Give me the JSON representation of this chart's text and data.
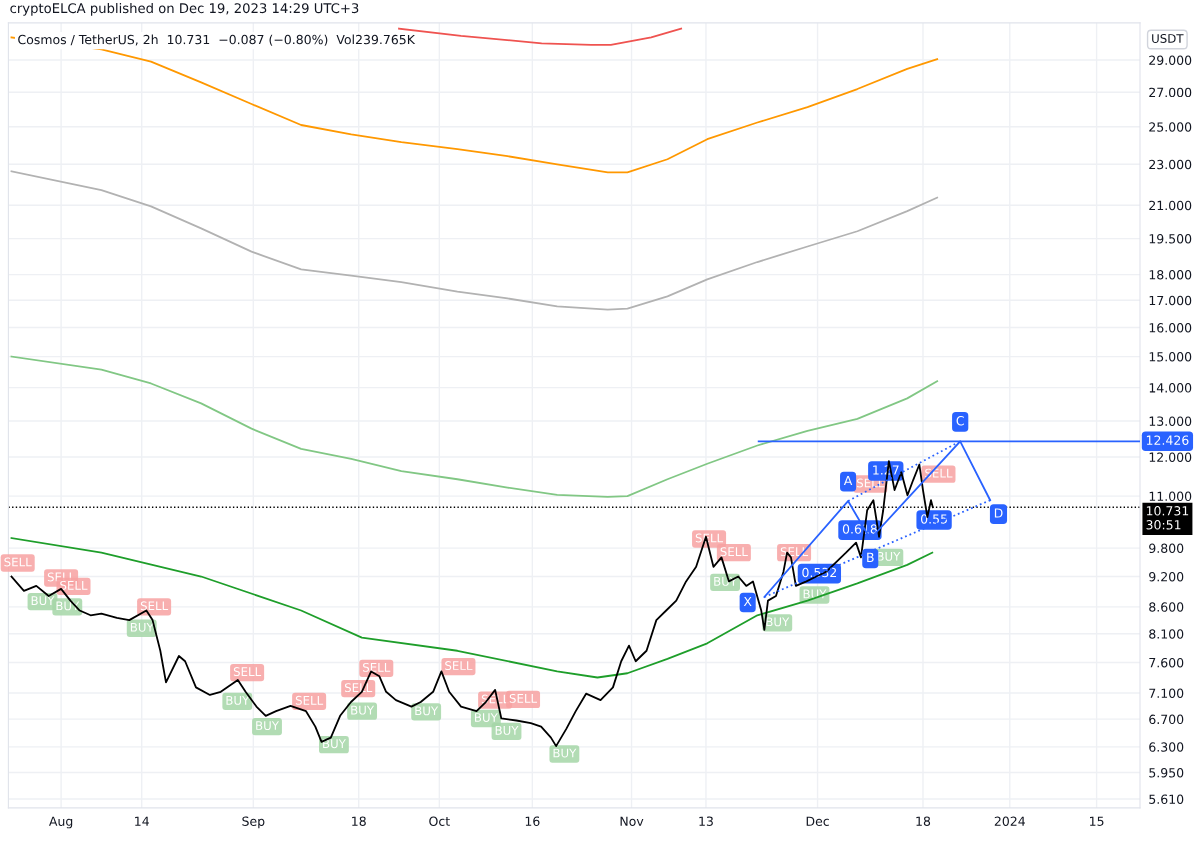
{
  "chart_data": {
    "type": "line",
    "title": "cryptoELCA published on Dec 19, 2023 14:29 UTC+3",
    "subtitle": "Cosmos / TetherUS, 2h  10.731  −0.087 (−0.80%)  Vol239.765K",
    "log": "y",
    "grid": true,
    "legend": false,
    "xlim": [
      "2023-07-23T12:00",
      "2024-01-22"
    ],
    "xticks": [
      {
        "value": "2023-08-01",
        "label": "Aug"
      },
      {
        "value": "2023-08-14",
        "label": "14"
      },
      {
        "value": "2023-09-01",
        "label": "Sep"
      },
      {
        "value": "2023-09-18",
        "label": "18"
      },
      {
        "value": "2023-10-01",
        "label": "Oct"
      },
      {
        "value": "2023-10-16",
        "label": "16"
      },
      {
        "value": "2023-11-01",
        "label": "Nov"
      },
      {
        "value": "2023-11-13",
        "label": "13"
      },
      {
        "value": "2023-12-01",
        "label": "Dec"
      },
      {
        "value": "2023-12-18",
        "label": "18"
      },
      {
        "value": "2024-01-01",
        "label": "2024"
      },
      {
        "value": "2024-01-15",
        "label": "15"
      }
    ],
    "ylim": [
      5.5,
      31.5
    ],
    "yticks": [
      {
        "value": 5.61,
        "label": "5.610"
      },
      {
        "value": 5.95,
        "label": "5.950"
      },
      {
        "value": 6.3,
        "label": "6.300"
      },
      {
        "value": 6.7,
        "label": "6.700"
      },
      {
        "value": 7.1,
        "label": "7.100"
      },
      {
        "value": 7.6,
        "label": "7.600"
      },
      {
        "value": 8.1,
        "label": "8.100"
      },
      {
        "value": 8.6,
        "label": "8.600"
      },
      {
        "value": 9.2,
        "label": "9.200"
      },
      {
        "value": 9.8,
        "label": "9.800"
      },
      {
        "value": 11,
        "label": "11.000"
      },
      {
        "value": 12,
        "label": "12.000"
      },
      {
        "value": 13,
        "label": "13.000"
      },
      {
        "value": 14,
        "label": "14.000"
      },
      {
        "value": 15,
        "label": "15.000"
      },
      {
        "value": 16,
        "label": "16.000"
      },
      {
        "value": 17,
        "label": "17.000"
      },
      {
        "value": 18,
        "label": "18.000"
      },
      {
        "value": 19.5,
        "label": "19.500"
      },
      {
        "value": 21,
        "label": "21.000"
      },
      {
        "value": 23,
        "label": "23.000"
      },
      {
        "value": 25,
        "label": "25.000"
      },
      {
        "value": 27,
        "label": "27.000"
      },
      {
        "value": 29,
        "label": "29.000"
      }
    ],
    "ref_lines": [
      {
        "axis": "y",
        "value": 10.731,
        "label": "10.731\n30:51",
        "color": "#000000",
        "line_style": "dotted"
      }
    ],
    "annotations": [
      "USDT",
      {
        "text": "0.532",
        "x": "2023-12-01T07:00",
        "y": 9.26
      },
      {
        "text": "0.618",
        "x": "2023-12-07T20:00",
        "y": 10.2
      },
      {
        "text": "1.27",
        "x": "2023-12-12T00:00",
        "y": 11.63
      },
      {
        "text": "0.55",
        "x": "2023-12-19T19:00",
        "y": 10.43
      },
      {
        "text": "12.426",
        "x": "2024-01-22",
        "y": 12.426
      }
    ],
    "series": [
      {
        "color": "#ef5350",
        "x": [
          "2023-09-24T12:00",
          "2023-10-04T12:00",
          "2023-10-17T12:00",
          "2023-10-25T12:00",
          "2023-10-28T16:00",
          "2023-11-04T04:00",
          "2023-11-09T00:00"
        ],
        "values": [
          31.1,
          30.6,
          30.1,
          30.0,
          30.0,
          30.5,
          31.1
        ]
      },
      {
        "color": "#ff9800",
        "x": [
          "2023-07-24",
          "2023-08-07T12:00",
          "2023-08-15T12:00",
          "2023-08-23T14:00",
          "2023-08-31T17:00",
          "2023-09-08T17:00",
          "2023-09-16T19:00",
          "2023-09-24T21:00",
          "2023-10-03T22:00",
          "2023-10-12T00:00",
          "2023-10-20T00:00",
          "2023-10-28T04:00",
          "2023-10-31T08:00",
          "2023-11-06T19:00",
          "2023-11-13T05:00",
          "2023-11-21T07:00",
          "2023-11-29T09:00",
          "2023-12-07T10:00",
          "2023-12-15T11:00",
          "2023-12-20T07:00"
        ],
        "values": [
          30.5,
          29.7,
          28.9,
          27.6,
          26.3,
          25.1,
          24.58,
          24.16,
          23.79,
          23.42,
          23.0,
          22.59,
          22.59,
          23.26,
          24.32,
          25.24,
          26.12,
          27.19,
          28.44,
          29.06
        ]
      },
      {
        "color": "#b2b2b2",
        "x": [
          "2023-07-24",
          "2023-08-07T12:00",
          "2023-08-15T12:00",
          "2023-08-23T14:00",
          "2023-08-31T17:00",
          "2023-09-08T17:00",
          "2023-09-16T19:00",
          "2023-09-24T21:00",
          "2023-10-03T22:00",
          "2023-10-12T00:00",
          "2023-10-20T00:00",
          "2023-10-28T04:00",
          "2023-10-31T08:00",
          "2023-11-06T19:00",
          "2023-11-13T05:00",
          "2023-11-21T07:00",
          "2023-11-29T09:00",
          "2023-12-07T10:00",
          "2023-12-15T11:00",
          "2023-12-20T07:00"
        ],
        "values": [
          22.64,
          21.72,
          20.95,
          19.95,
          18.94,
          18.21,
          17.96,
          17.7,
          17.33,
          17.07,
          16.77,
          16.65,
          16.69,
          17.15,
          17.81,
          18.51,
          19.16,
          19.82,
          20.73,
          21.36
        ]
      },
      {
        "color": "#81c784",
        "x": [
          "2023-07-24",
          "2023-08-07T12:00",
          "2023-08-15T12:00",
          "2023-08-23T14:00",
          "2023-08-31T17:00",
          "2023-09-08T17:00",
          "2023-09-16T19:00",
          "2023-09-24T21:00",
          "2023-10-03T22:00",
          "2023-10-12T00:00",
          "2023-10-20T00:00",
          "2023-10-28T04:00",
          "2023-10-31T08:00",
          "2023-11-06T19:00",
          "2023-11-13T05:00",
          "2023-11-21T07:00",
          "2023-11-29T09:00",
          "2023-12-07T10:00",
          "2023-12-15T11:00",
          "2023-12-20T07:00"
        ],
        "values": [
          15.0,
          14.57,
          14.13,
          13.52,
          12.78,
          12.22,
          11.95,
          11.63,
          11.42,
          11.21,
          11.03,
          10.98,
          11.0,
          11.42,
          11.82,
          12.31,
          12.72,
          13.06,
          13.67,
          14.2
        ]
      },
      {
        "color": "#1e9e2a",
        "x": [
          "2023-07-24",
          "2023-08-07T12:00",
          "2023-08-23T14:00",
          "2023-09-08T17:00",
          "2023-09-18T12:00",
          "2023-10-03T22:00",
          "2023-10-20T00:00",
          "2023-10-26T12:00",
          "2023-10-31T08:00",
          "2023-11-06T19:00",
          "2023-11-13T05:00",
          "2023-11-21T07:00",
          "2023-11-29T09:00",
          "2023-12-07T10:00",
          "2023-12-15T11:00",
          "2023-12-19T12:00"
        ],
        "values": [
          10.02,
          9.7,
          9.2,
          8.53,
          8.03,
          7.8,
          7.45,
          7.35,
          7.42,
          7.66,
          7.93,
          8.44,
          8.72,
          9.06,
          9.44,
          9.7
        ]
      },
      {
        "color": "#000000",
        "x": [
          "2023-07-24",
          "2023-07-26",
          "2023-07-28",
          "2023-07-30",
          "2023-08-01",
          "2023-08-02T12:00",
          "2023-08-04",
          "2023-08-05T18:00",
          "2023-08-07T12:00",
          "2023-08-10",
          "2023-08-12",
          "2023-08-14T18:00",
          "2023-08-15T18:00",
          "2023-08-17",
          "2023-08-17T22:00",
          "2023-08-20",
          "2023-08-21",
          "2023-08-22T18:00",
          "2023-08-25",
          "2023-08-26T18:00",
          "2023-08-29T12:00",
          "2023-08-30T18:00",
          "2023-09-01T12:00",
          "2023-09-03",
          "2023-09-04T16:00",
          "2023-09-07",
          "2023-09-09T12:00",
          "2023-09-11",
          "2023-09-12",
          "2023-09-13T12:00",
          "2023-09-15",
          "2023-09-16T18:00",
          "2023-09-18T12:00",
          "2023-09-20",
          "2023-09-21T08:00",
          "2023-09-22T10:00",
          "2023-09-24",
          "2023-09-26T12:00",
          "2023-09-28",
          "2023-09-30",
          "2023-10-01T08:00",
          "2023-10-02T14:00",
          "2023-10-04T12:00",
          "2023-10-07",
          "2023-10-08T12:00",
          "2023-10-10",
          "2023-10-11",
          "2023-10-13T10:00",
          "2023-10-15T18:00",
          "2023-10-17T10:00",
          "2023-10-19",
          "2023-10-19T20:00",
          "2023-10-21T12:00",
          "2023-10-23",
          "2023-10-24T16:00",
          "2023-10-27",
          "2023-10-29",
          "2023-10-30T08:00",
          "2023-10-31T14:00",
          "2023-11-01T16:00",
          "2023-11-03T10:00",
          "2023-11-05",
          "2023-11-06T14:00",
          "2023-11-08T05:00",
          "2023-11-09T19:00",
          "2023-11-11T10:00",
          "2023-11-13",
          "2023-11-14T05:00",
          "2023-11-15T12:00",
          "2023-11-16T17:00",
          "2023-11-18T05:00",
          "2023-11-19T12:00",
          "2023-11-20T14:00",
          "2023-11-21T22:00",
          "2023-11-22T10:00",
          "2023-11-23",
          "2023-11-24T07:00",
          "2023-11-25T12:00",
          "2023-11-26T02:00",
          "2023-11-26T17:00",
          "2023-11-27T12:00",
          "2023-11-29T05:00",
          "2023-11-30T19:00",
          "2023-12-02T10:00",
          "2023-12-04",
          "2023-12-05T14:00",
          "2023-12-07T05:00",
          "2023-12-08",
          "2023-12-09",
          "2023-12-10",
          "2023-12-10T22:00",
          "2023-12-11T14:00",
          "2023-12-12T12:00",
          "2023-12-13T10:00",
          "2023-12-14T12:00",
          "2023-12-15T12:00",
          "2023-12-16T10:00",
          "2023-12-17T10:00",
          "2023-12-18",
          "2023-12-18T17:00",
          "2023-12-19T07:00",
          "2023-12-19T14:00"
        ],
        "values": [
          9.2,
          8.91,
          9.01,
          8.81,
          8.95,
          8.72,
          8.53,
          8.44,
          8.47,
          8.39,
          8.35,
          8.53,
          8.35,
          7.8,
          7.27,
          7.71,
          7.62,
          7.19,
          7.07,
          7.12,
          7.31,
          7.12,
          6.89,
          6.75,
          6.82,
          6.9,
          6.82,
          6.59,
          6.37,
          6.43,
          6.75,
          6.96,
          7.12,
          7.45,
          7.37,
          7.12,
          6.99,
          6.89,
          6.96,
          7.12,
          7.45,
          7.12,
          6.89,
          6.82,
          6.96,
          7.15,
          6.71,
          6.68,
          6.64,
          6.59,
          6.43,
          6.31,
          6.56,
          6.82,
          7.09,
          6.99,
          7.19,
          7.62,
          7.89,
          7.62,
          7.8,
          8.35,
          8.53,
          8.72,
          9.1,
          9.4,
          10.05,
          9.4,
          9.6,
          9.1,
          9.2,
          9.01,
          9.1,
          8.53,
          8.17,
          8.72,
          8.81,
          9.3,
          9.7,
          9.6,
          9.01,
          9.1,
          9.2,
          9.3,
          9.5,
          9.7,
          9.92,
          9.6,
          10.66,
          10.9,
          10.05,
          10.66,
          11.89,
          11.15,
          11.6,
          11.02,
          11.4,
          11.8,
          11.15,
          10.5,
          10.9,
          10.731
        ]
      },
      {
        "type": "line",
        "color": "#2962ff",
        "x": [
          "2023-11-22T10:00",
          "2023-12-05T22:00",
          "2023-12-09T12:00",
          "2023-12-24",
          "2023-12-28T20:00"
        ],
        "values": [
          8.79,
          10.88,
          10.0,
          12.426,
          10.9
        ],
        "value_labels": [
          "X",
          "A",
          "B",
          "C",
          "D"
        ]
      },
      {
        "type": "line",
        "color": "#2962ff",
        "line_style": "dotted",
        "x": [
          "2023-12-05T22:00",
          "2023-12-24"
        ],
        "values": [
          10.88,
          12.426
        ]
      },
      {
        "type": "line",
        "color": "#2962ff",
        "line_style": "dotted",
        "x": [
          "2023-11-22T10:00",
          "2023-12-28T20:00"
        ],
        "values": [
          8.79,
          10.9
        ]
      },
      {
        "type": "line",
        "color": "#2962ff",
        "x": [
          "2023-11-21T12:00",
          "2024-01-22"
        ],
        "values": [
          12.426,
          12.426
        ]
      },
      {
        "type": "scatter",
        "color": "#f7a1a1",
        "x": [
          "2023-07-25",
          "2023-08-01",
          "2023-08-03",
          "2023-08-16",
          "2023-08-31",
          "2023-09-10",
          "2023-09-17T22:00",
          "2023-09-20T20:00",
          "2023-10-04T02:00",
          "2023-10-10T00:00",
          "2023-10-14T12:00",
          "2023-11-13T12:00",
          "2023-11-17T12:00",
          "2023-11-27T05:00",
          "2023-12-09T12:00",
          "2023-12-20T12:00"
        ],
        "values": [
          9.48,
          9.17,
          9.0,
          8.6,
          7.43,
          6.97,
          7.17,
          7.5,
          7.53,
          6.99,
          7.0,
          10.0,
          9.7,
          9.7,
          11.3,
          11.55
        ],
        "value_labels": [
          "SELL",
          "SELL",
          "SELL",
          "SELL",
          "SELL",
          "SELL",
          "SELL",
          "SELL",
          "SELL",
          "SELL",
          "SELL",
          "SELL",
          "SELL",
          "SELL",
          "SELL",
          "SELL"
        ]
      },
      {
        "type": "scatter",
        "color": "#a5d6a7",
        "x": [
          "2023-07-29",
          "2023-08-02",
          "2023-08-14",
          "2023-08-29T10:00",
          "2023-09-03T05:00",
          "2023-09-14",
          "2023-09-18T13:00",
          "2023-09-28T21:00",
          "2023-10-08T12:00",
          "2023-10-11T20:00",
          "2023-10-21T04:00",
          "2023-11-16T02:00",
          "2023-11-24T12:00",
          "2023-11-30T12:00",
          "2023-12-12T10:00"
        ],
        "values": [
          8.7,
          8.6,
          8.2,
          6.97,
          6.59,
          6.33,
          6.82,
          6.81,
          6.71,
          6.52,
          6.2,
          9.08,
          8.3,
          8.83,
          9.6
        ],
        "value_labels": [
          "BUY",
          "BUY",
          "BUY",
          "BUY",
          "BUY",
          "BUY",
          "BUY",
          "BUY",
          "BUY",
          "BUY",
          "BUY",
          "BUY",
          "BUY",
          "BUY",
          "BUY"
        ]
      }
    ]
  }
}
